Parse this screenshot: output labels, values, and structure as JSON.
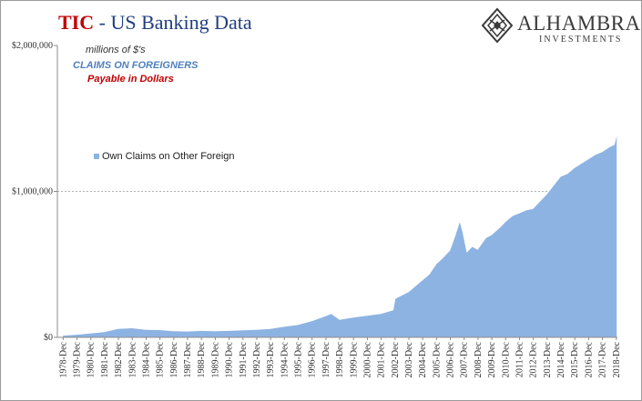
{
  "header": {
    "title_tic": "TIC",
    "title_sep": " - ",
    "title_rest": "US Banking Data",
    "logo_name": "ALHAMBRA",
    "logo_sub": "INVESTMENTS"
  },
  "notes": {
    "units": "millions of $'s",
    "series_group": "CLAIMS  ON FOREIGNERS",
    "currency": "Payable  in Dollars"
  },
  "colors": {
    "area": "#8db3e2",
    "title_red": "#c00000",
    "title_blue": "#1f3f7f",
    "note_blue": "#4f81bd",
    "note_red": "#c00000"
  },
  "chart_data": {
    "type": "area",
    "title": "TIC - US Banking Data",
    "xlabel": "",
    "ylabel": "",
    "ylim": [
      0,
      2000000
    ],
    "yticks": [
      0,
      1000000,
      2000000
    ],
    "ytick_labels": [
      "$0",
      "$1,000,000",
      "$2,000,000"
    ],
    "grid": "horizontal dashed at $1,000,000",
    "legend_position": "left, inside plot",
    "x_tick_labels": [
      "1978-Dec",
      "1979-Dec",
      "1980-Dec",
      "1981-Dec",
      "1982-Dec",
      "1983-Dec",
      "1984-Dec",
      "1985-Dec",
      "1986-Dec",
      "1987-Dec",
      "1988-Dec",
      "1989-Dec",
      "1990-Dec",
      "1991-Dec",
      "1992-Dec",
      "1993-Dec",
      "1994-Dec",
      "1995-Dec",
      "1996-Dec",
      "1997-Dec",
      "1998-Dec",
      "1999-Dec",
      "2000-Dec",
      "2001-Dec",
      "2002-Dec",
      "2003-Dec",
      "2004-Dec",
      "2005-Dec",
      "2006-Dec",
      "2007-Dec",
      "2008-Dec",
      "2009-Dec",
      "2010-Dec",
      "2011-Dec",
      "2012-Dec",
      "2013-Dec",
      "2014-Dec",
      "2015-Dec",
      "2016-Dec",
      "2017-Dec",
      "2018-Dec"
    ],
    "series": [
      {
        "name": "Own Claims on Other Foreign",
        "x": [
          1978.9,
          1979.9,
          1980.9,
          1981.9,
          1982.9,
          1983.9,
          1984.9,
          1985.9,
          1986.9,
          1987.9,
          1988.9,
          1989.9,
          1990.9,
          1991.9,
          1992.9,
          1993.9,
          1994.9,
          1995.9,
          1996.9,
          1997.9,
          1998.3,
          1998.9,
          1999.9,
          2000.9,
          2001.9,
          2002.8,
          2002.95,
          2003.9,
          2004.9,
          2005.4,
          2005.9,
          2006.4,
          2006.9,
          2007.3,
          2007.6,
          2007.8,
          2008.1,
          2008.5,
          2008.9,
          2009.5,
          2009.9,
          2010.5,
          2010.9,
          2011.4,
          2011.9,
          2012.4,
          2012.9,
          2013.4,
          2013.9,
          2014.4,
          2014.9,
          2015.4,
          2015.9,
          2016.4,
          2016.9,
          2017.4,
          2017.9,
          2018.4,
          2018.8,
          2018.95
        ],
        "y": [
          12000,
          18000,
          26000,
          36000,
          58000,
          62000,
          52000,
          50000,
          42000,
          40000,
          44000,
          42000,
          44000,
          48000,
          52000,
          58000,
          72000,
          85000,
          110000,
          145000,
          160000,
          120000,
          135000,
          148000,
          160000,
          185000,
          265000,
          310000,
          390000,
          430000,
          500000,
          545000,
          595000,
          700000,
          790000,
          720000,
          580000,
          620000,
          600000,
          680000,
          700000,
          750000,
          790000,
          830000,
          850000,
          870000,
          880000,
          930000,
          980000,
          1040000,
          1100000,
          1120000,
          1160000,
          1190000,
          1220000,
          1250000,
          1270000,
          1300000,
          1320000,
          1380000
        ]
      }
    ]
  }
}
